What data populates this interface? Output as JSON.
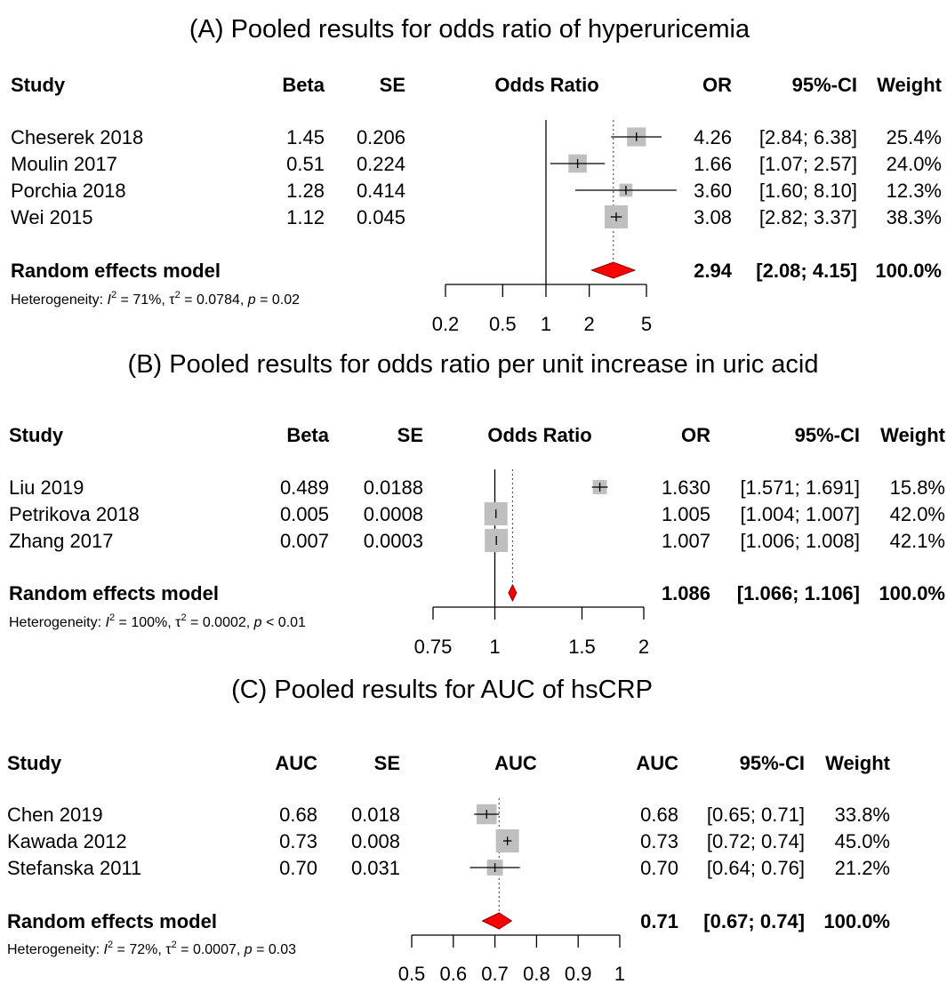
{
  "colors": {
    "box": "#bfbfbf",
    "diamond": "#ff0000",
    "diamond_stroke": "#8b0000",
    "line": "#000000",
    "dotted": "#555555"
  },
  "chart_data": [
    {
      "type": "forest",
      "title": "(A) Pooled results for odds ratio of hyperuricemia",
      "scale": "log",
      "columns": {
        "study": "Study",
        "est": "Beta",
        "se": "SE",
        "plot": "Odds Ratio",
        "effect": "OR",
        "ci": "95%-CI",
        "weight": "Weight"
      },
      "studies": [
        {
          "name": "Cheserek 2018",
          "est": "1.45",
          "se": "0.206",
          "or": 4.26,
          "lower": 2.84,
          "upper": 6.38,
          "or_text": "4.26",
          "ci_text": "[2.84; 6.38]",
          "weight": 25.4,
          "weight_text": "25.4%"
        },
        {
          "name": "Moulin 2017",
          "est": "0.51",
          "se": "0.224",
          "or": 1.66,
          "lower": 1.07,
          "upper": 2.57,
          "or_text": "1.66",
          "ci_text": "[1.07; 2.57]",
          "weight": 24.0,
          "weight_text": "24.0%"
        },
        {
          "name": "Porchia 2018",
          "est": "1.28",
          "se": "0.414",
          "or": 3.6,
          "lower": 1.6,
          "upper": 8.1,
          "or_text": "3.60",
          "ci_text": "[1.60; 8.10]",
          "weight": 12.3,
          "weight_text": "12.3%"
        },
        {
          "name": "Wei 2015",
          "est": "1.12",
          "se": "0.045",
          "or": 3.08,
          "lower": 2.82,
          "upper": 3.37,
          "or_text": "3.08",
          "ci_text": "[2.82; 3.37]",
          "weight": 38.3,
          "weight_text": "38.3%"
        }
      ],
      "summary": {
        "name": "Random effects model",
        "or": 2.94,
        "lower": 2.08,
        "upper": 4.15,
        "or_text": "2.94",
        "ci_text": "[2.08; 4.15]",
        "weight_text": "100.0%"
      },
      "heterogeneity": {
        "label": "Heterogeneity: ",
        "i2": " = 71%, ",
        "tau2": " = 0.0784, ",
        "p": " = 0.02"
      },
      "axis": {
        "min": 0.2,
        "max": 5,
        "ticks": [
          0.2,
          0.5,
          1,
          2,
          5
        ],
        "tick_labels": [
          "0.2",
          "0.5",
          "1",
          "2",
          "5"
        ],
        "null": 1
      }
    },
    {
      "type": "forest",
      "title": "(B) Pooled results for odds ratio per unit increase in uric acid",
      "scale": "log",
      "columns": {
        "study": "Study",
        "est": "Beta",
        "se": "SE",
        "plot": "Odds Ratio",
        "effect": "OR",
        "ci": "95%-CI",
        "weight": "Weight"
      },
      "studies": [
        {
          "name": "Liu 2019",
          "est": "0.489",
          "se": "0.0188",
          "or": 1.63,
          "lower": 1.571,
          "upper": 1.691,
          "or_text": "1.630",
          "ci_text": "[1.571; 1.691]",
          "weight": 15.8,
          "weight_text": "15.8%"
        },
        {
          "name": "Petrikova 2018",
          "est": "0.005",
          "se": "0.0008",
          "or": 1.005,
          "lower": 1.004,
          "upper": 1.007,
          "or_text": "1.005",
          "ci_text": "[1.004; 1.007]",
          "weight": 42.0,
          "weight_text": "42.0%"
        },
        {
          "name": "Zhang 2017",
          "est": "0.007",
          "se": "0.0003",
          "or": 1.007,
          "lower": 1.006,
          "upper": 1.008,
          "or_text": "1.007",
          "ci_text": "[1.006; 1.008]",
          "weight": 42.1,
          "weight_text": "42.1%"
        }
      ],
      "summary": {
        "name": "Random effects model",
        "or": 1.086,
        "lower": 1.066,
        "upper": 1.106,
        "or_text": "1.086",
        "ci_text": "[1.066; 1.106]",
        "weight_text": "100.0%"
      },
      "heterogeneity": {
        "label": "Heterogeneity: ",
        "i2": " = 100%, ",
        "tau2": " = 0.0002, ",
        "p": " < 0.01"
      },
      "axis": {
        "min": 0.75,
        "max": 2,
        "ticks": [
          0.75,
          1,
          1.5,
          2
        ],
        "tick_labels": [
          "0.75",
          "1",
          "1.5",
          "2"
        ],
        "null": 1
      }
    },
    {
      "type": "forest",
      "title": "(C) Pooled results for AUC of hsCRP",
      "scale": "linear",
      "columns": {
        "study": "Study",
        "est": "AUC",
        "se": "SE",
        "plot": "AUC",
        "effect": "AUC",
        "ci": "95%-CI",
        "weight": "Weight"
      },
      "studies": [
        {
          "name": "Chen 2019",
          "est": "0.68",
          "se": "0.018",
          "or": 0.68,
          "lower": 0.65,
          "upper": 0.71,
          "or_text": "0.68",
          "ci_text": "[0.65; 0.71]",
          "weight": 33.8,
          "weight_text": "33.8%"
        },
        {
          "name": "Kawada 2012",
          "est": "0.73",
          "se": "0.008",
          "or": 0.73,
          "lower": 0.72,
          "upper": 0.74,
          "or_text": "0.73",
          "ci_text": "[0.72; 0.74]",
          "weight": 45.0,
          "weight_text": "45.0%"
        },
        {
          "name": "Stefanska 2011",
          "est": "0.70",
          "se": "0.031",
          "or": 0.7,
          "lower": 0.64,
          "upper": 0.76,
          "or_text": "0.70",
          "ci_text": "[0.64; 0.76]",
          "weight": 21.2,
          "weight_text": "21.2%"
        }
      ],
      "summary": {
        "name": "Random effects model",
        "or": 0.71,
        "lower": 0.67,
        "upper": 0.74,
        "or_text": "0.71",
        "ci_text": "[0.67; 0.74]",
        "weight_text": "100.0%"
      },
      "heterogeneity": {
        "label": "Heterogeneity: ",
        "i2": " = 72%, ",
        "tau2": " = 0.0007, ",
        "p": " = 0.03"
      },
      "axis": {
        "min": 0.5,
        "max": 1,
        "ticks": [
          0.5,
          0.6,
          0.7,
          0.8,
          0.9,
          1
        ],
        "tick_labels": [
          "0.5",
          "0.6",
          "0.7",
          "0.8",
          "0.9",
          "1"
        ],
        "null": null
      }
    }
  ]
}
